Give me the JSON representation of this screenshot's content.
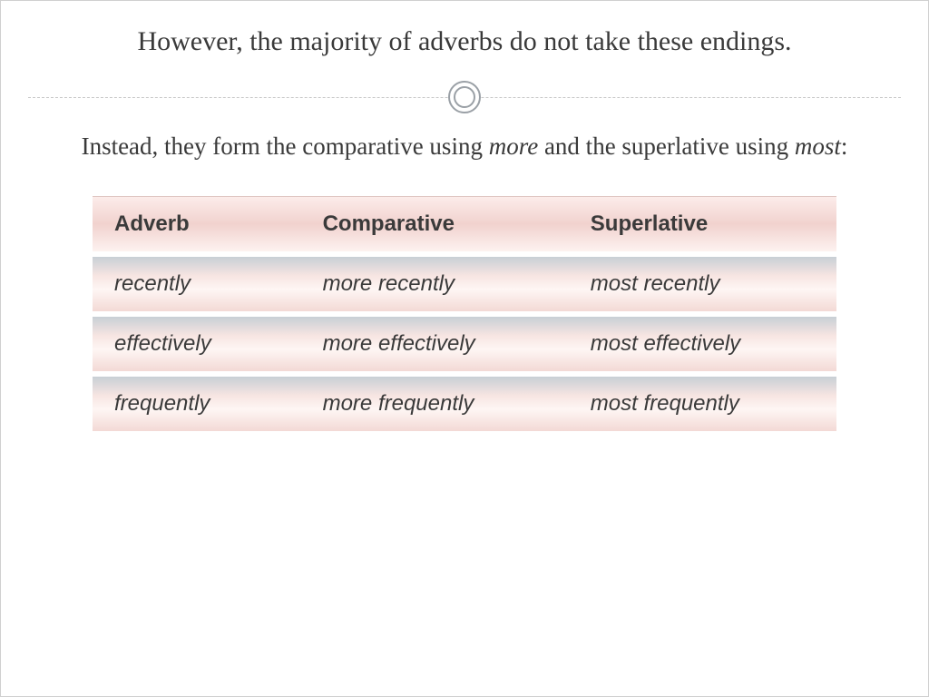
{
  "title": "However, the majority of adverbs do not take these endings.",
  "subtitle_parts": {
    "p1": "Instead, they form the comparative using ",
    "more": "more",
    "p2": " and the superlative using ",
    "most": "most",
    "p3": ":"
  },
  "table": {
    "columns": [
      "Adverb",
      "Comparative",
      "Superlative"
    ],
    "rows": [
      [
        "recently",
        "more recently",
        "most recently"
      ],
      [
        "effectively",
        "more effectively",
        "most effectively"
      ],
      [
        "frequently",
        "more frequently",
        "most frequently"
      ]
    ],
    "header_bg_gradient": [
      "#fcecea",
      "#f1d2ce",
      "#fdf2f0"
    ],
    "row_bg_gradient": [
      "#c8cfd5",
      "#f7e5e2",
      "#fef6f4",
      "#f3d9d5"
    ],
    "header_font_weight": "bold",
    "cell_font_style": "italic",
    "font_family": "Verdana",
    "cell_fontsize": 24,
    "col_widths_pct": [
      28,
      36,
      36
    ]
  },
  "styling": {
    "slide_bg": "#ffffff",
    "title_fontsize": 30,
    "subtitle_fontsize": 27,
    "text_color": "#3a3a3a",
    "title_font_family": "Georgia",
    "divider_dash_color": "#c8c8c8",
    "ring_border_color": "#9aa0a6",
    "ring_outer_diameter": 36,
    "ring_inner_diameter": 24
  }
}
